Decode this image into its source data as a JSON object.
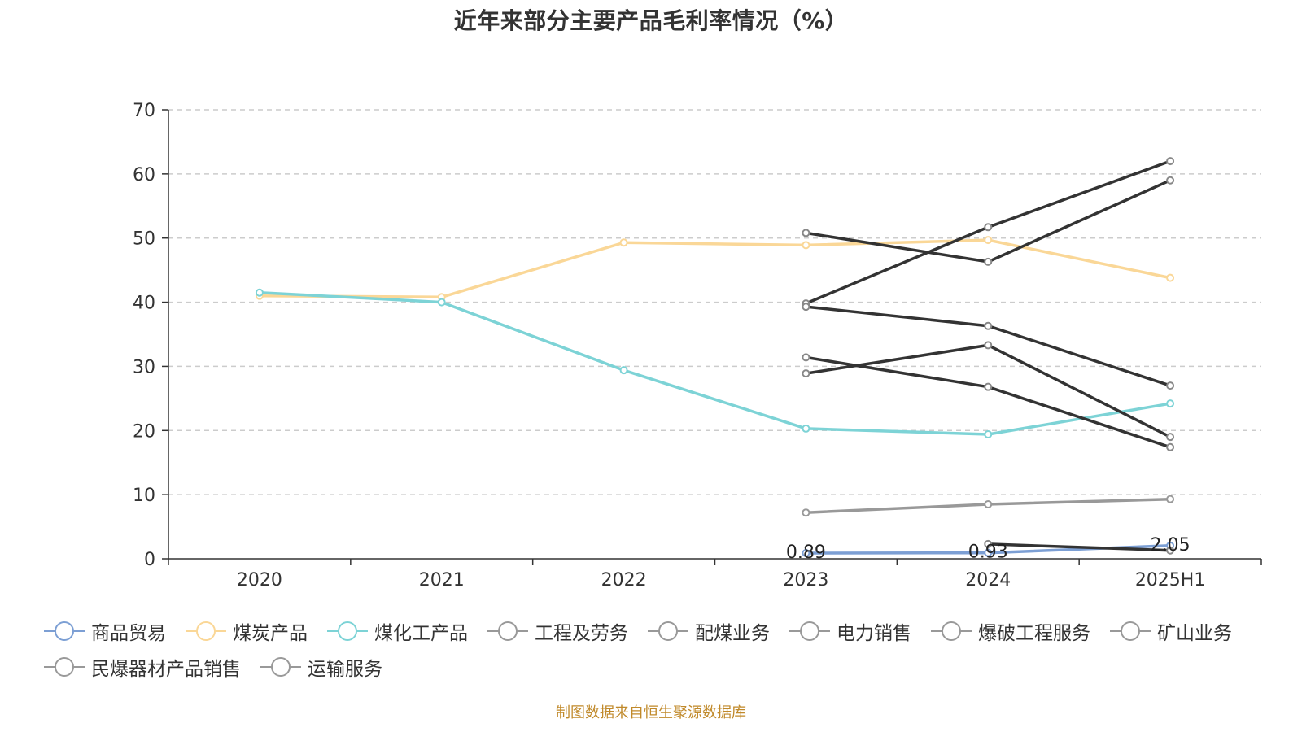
{
  "chart_data": {
    "type": "line",
    "title": "近年来部分主要产品毛利率情况（%）",
    "categories": [
      "2020",
      "2021",
      "2022",
      "2023",
      "2024",
      "2025H1"
    ],
    "ylim": [
      0,
      70
    ],
    "yticks": [
      0,
      10,
      20,
      30,
      40,
      50,
      60,
      70
    ],
    "grid": true,
    "legend_position": "bottom",
    "series": [
      {
        "name": "商品贸易",
        "color": "#7c9fd4",
        "values": [
          null,
          null,
          null,
          0.89,
          0.93,
          2.05
        ],
        "labels": [
          "",
          "",
          "",
          "0.89",
          "0.93",
          "2.05"
        ]
      },
      {
        "name": "煤炭产品",
        "color": "#fad797",
        "values": [
          41.0,
          40.8,
          49.3,
          48.9,
          49.7,
          43.8
        ],
        "labels": []
      },
      {
        "name": "煤化工产品",
        "color": "#7dd3d6",
        "values": [
          41.5,
          40.0,
          29.4,
          20.3,
          19.4,
          24.2
        ],
        "labels": []
      },
      {
        "name": "工程及劳务",
        "color": "#333333",
        "values": [
          null,
          null,
          null,
          50.8,
          46.3,
          59.0
        ],
        "labels": []
      },
      {
        "name": "配煤业务",
        "color": "#333333",
        "values": [
          null,
          null,
          null,
          39.8,
          51.7,
          62.0
        ],
        "labels": []
      },
      {
        "name": "电力销售",
        "color": "#333333",
        "values": [
          null,
          null,
          null,
          39.3,
          36.3,
          27.0
        ],
        "labels": []
      },
      {
        "name": "爆破工程服务",
        "color": "#333333",
        "values": [
          null,
          null,
          null,
          31.4,
          26.8,
          17.4
        ],
        "labels": []
      },
      {
        "name": "矿山业务",
        "color": "#333333",
        "values": [
          null,
          null,
          null,
          28.9,
          33.3,
          19.0
        ],
        "labels": []
      },
      {
        "name": "民爆器材产品销售",
        "color": "#999999",
        "values": [
          null,
          null,
          null,
          7.2,
          8.5,
          9.3
        ],
        "labels": []
      },
      {
        "name": "运输服务",
        "color": "#333333",
        "values": [
          null,
          null,
          null,
          null,
          2.3,
          1.3
        ],
        "labels": []
      }
    ]
  },
  "legend": {
    "icon_color": "#999999"
  },
  "source_note": "制图数据来自恒生聚源数据库"
}
